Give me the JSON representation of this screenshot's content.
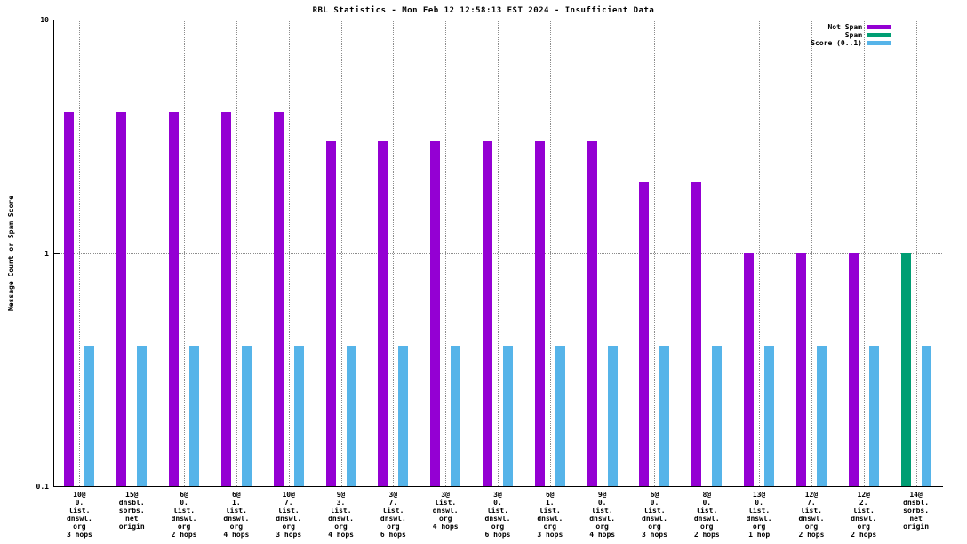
{
  "chart_data": {
    "type": "bar",
    "title": "RBL Statistics - Mon Feb 12 12:58:13 EST 2024 - Insufficient Data",
    "ylabel": "Message Count or Spam Score",
    "yscale": "log",
    "ylim": [
      0.1,
      10
    ],
    "grid": true,
    "legend_position": "top-right",
    "yticks": [
      {
        "label": "10",
        "value": 10
      },
      {
        "label": "1",
        "value": 1
      },
      {
        "label": "0.1",
        "value": 0.1
      }
    ],
    "gridlines_y": [
      10,
      1
    ],
    "categories": [
      [
        "10@",
        "0.",
        "list.",
        "dnswl.",
        "org",
        "3 hops"
      ],
      [
        "15@",
        "dnsbl.",
        "sorbs.",
        "net",
        "origin"
      ],
      [
        "6@",
        "0.",
        "list.",
        "dnswl.",
        "org",
        "2 hops"
      ],
      [
        "6@",
        "1.",
        "list.",
        "dnswl.",
        "org",
        "4 hops"
      ],
      [
        "10@",
        "7.",
        "list.",
        "dnswl.",
        "org",
        "3 hops"
      ],
      [
        "9@",
        "3.",
        "list.",
        "dnswl.",
        "org",
        "4 hops"
      ],
      [
        "3@",
        "7.",
        "list.",
        "dnswl.",
        "org",
        "6 hops"
      ],
      [
        "3@",
        "list.",
        "dnswl.",
        "org",
        "4 hops"
      ],
      [
        "3@",
        "0.",
        "list.",
        "dnswl.",
        "org",
        "6 hops"
      ],
      [
        "6@",
        "1.",
        "list.",
        "dnswl.",
        "org",
        "3 hops"
      ],
      [
        "9@",
        "0.",
        "list.",
        "dnswl.",
        "org",
        "4 hops"
      ],
      [
        "6@",
        "0.",
        "list.",
        "dnswl.",
        "org",
        "3 hops"
      ],
      [
        "8@",
        "0.",
        "list.",
        "dnswl.",
        "org",
        "2 hops"
      ],
      [
        "13@",
        "0.",
        "list.",
        "dnswl.",
        "org",
        "1 hop"
      ],
      [
        "12@",
        "7.",
        "list.",
        "dnswl.",
        "org",
        "2 hops"
      ],
      [
        "12@",
        "2.",
        "list.",
        "dnswl.",
        "org",
        "2 hops"
      ],
      [
        "14@",
        "dnsbl.",
        "sorbs.",
        "net",
        "origin"
      ]
    ],
    "series": [
      {
        "name": "Not Spam",
        "color": "#9400d3",
        "values": [
          4,
          4,
          4,
          4,
          4,
          3,
          3,
          3,
          3,
          3,
          3,
          2,
          2,
          1,
          1,
          1,
          null
        ]
      },
      {
        "name": "Spam",
        "color": "#009e73",
        "values": [
          null,
          null,
          null,
          null,
          null,
          null,
          null,
          null,
          null,
          null,
          null,
          null,
          null,
          null,
          null,
          null,
          1
        ]
      },
      {
        "name": "Score (0..1)",
        "color": "#56b4e9",
        "values": [
          0.4,
          0.4,
          0.4,
          0.4,
          0.4,
          0.4,
          0.4,
          0.4,
          0.4,
          0.4,
          0.4,
          0.4,
          0.4,
          0.4,
          0.4,
          0.4,
          0.4
        ]
      }
    ]
  }
}
